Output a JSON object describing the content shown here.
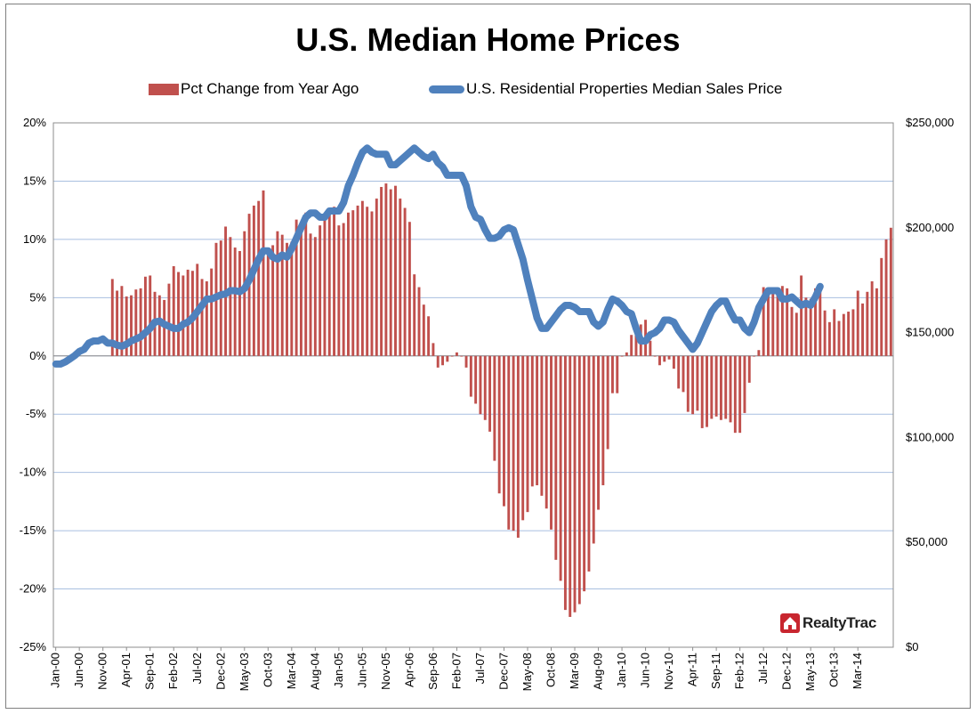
{
  "chart_data": {
    "type": "bar",
    "title": "U.S. Median Home Prices",
    "legend_placement": "top",
    "grid": true,
    "logo_text": "RealtyTrac",
    "colors": {
      "bars": "#c0504d",
      "line": "#4f81bd",
      "grid": "#a9bfe0"
    },
    "x_tick_labels": [
      "Jan-00",
      "Jun-00",
      "Nov-00",
      "Apr-01",
      "Sep-01",
      "Feb-02",
      "Jul-02",
      "Dec-02",
      "May-03",
      "Oct-03",
      "Mar-04",
      "Aug-04",
      "Jan-05",
      "Jun-05",
      "Nov-05",
      "Apr-06",
      "Sep-06",
      "Feb-07",
      "Jul-07",
      "Dec-07",
      "May-08",
      "Oct-08",
      "Mar-09",
      "Aug-09",
      "Jan-10",
      "Jun-10",
      "Nov-10",
      "Apr-11",
      "Sep-11",
      "Feb-12",
      "Jul-12",
      "Dec-12",
      "May-13",
      "Oct-13",
      "Mar-14"
    ],
    "y_left": {
      "ticks": [
        "20%",
        "15%",
        "10%",
        "5%",
        "0%",
        "-5%",
        "-10%",
        "-15%",
        "-20%",
        "-25%"
      ],
      "min": -25,
      "max": 20
    },
    "y_right": {
      "ticks": [
        "$250,000",
        "$200,000",
        "$150,000",
        "$100,000",
        "$50,000",
        "$0"
      ],
      "min": 0,
      "max": 250000
    },
    "series": [
      {
        "name": "Pct Change from Year Ago",
        "type": "bar",
        "start": "Jan-00",
        "values": [
          null,
          null,
          null,
          null,
          null,
          null,
          null,
          null,
          null,
          null,
          null,
          null,
          6.6,
          5.6,
          6,
          5.1,
          5.2,
          5.7,
          5.8,
          6.8,
          6.9,
          5.5,
          5.2,
          4.8,
          6.2,
          7.7,
          7.2,
          6.9,
          7.4,
          7.3,
          7.9,
          6.6,
          6.4,
          7.5,
          9.7,
          9.9,
          11.1,
          10.2,
          9.3,
          9,
          10.7,
          12.2,
          12.9,
          13.3,
          14.2,
          9.2,
          9.5,
          10.7,
          10.4,
          9.7,
          9.8,
          11.7,
          11.5,
          12.3,
          10.5,
          10.2,
          11.2,
          11.7,
          12.5,
          12.8,
          11.2,
          11.4,
          12.3,
          12.5,
          12.9,
          13.3,
          12.8,
          12.4,
          13.5,
          14.5,
          14.8,
          14.3,
          14.6,
          13.5,
          12.7,
          11.5,
          7,
          5.9,
          4.4,
          3.4,
          1.1,
          -1,
          -0.8,
          -0.5,
          0,
          0.3,
          0,
          -1,
          -3.5,
          -4.1,
          -5,
          -5.5,
          -6.5,
          -9,
          -11.8,
          -12.9,
          -14.9,
          -15,
          -15.6,
          -14.1,
          -13.4,
          -11.2,
          -11.1,
          -12,
          -13.1,
          -14.9,
          -17.5,
          -19.3,
          -21.8,
          -22.4,
          -22,
          -21.3,
          -20.2,
          -18.5,
          -16.1,
          -13.2,
          -11.1,
          -8,
          -3.2,
          -3.2,
          0,
          0.3,
          1.8,
          2.3,
          2.7,
          3.1,
          1.3,
          0,
          -0.8,
          -0.5,
          -0.3,
          -1.1,
          -2.8,
          -3.1,
          -4.8,
          -5,
          -4.7,
          -6.2,
          -6.1,
          -5.4,
          -5.2,
          -5.5,
          -5.4,
          -5.7,
          -6.6,
          -6.6,
          -4.9,
          -2.3,
          0,
          0.5,
          5.9,
          5.5,
          5.7,
          5.8,
          6,
          5.8,
          4.2,
          3.7,
          6.9,
          5,
          4.9,
          5.8,
          6.2,
          3.9,
          2.9,
          4,
          3,
          3.6,
          3.8,
          4,
          5.6,
          4.5,
          5.5,
          6.4,
          5.8,
          8.4,
          10,
          11
        ]
      },
      {
        "name": "U.S. Residential Properties Median Sales Price",
        "type": "line",
        "start": "Jan-00",
        "values": [
          135000,
          135000,
          136000,
          137500,
          139000,
          141000,
          142000,
          145000,
          146000,
          146000,
          147000,
          145000,
          145000,
          144000,
          143500,
          144500,
          146000,
          147000,
          148000,
          150000,
          152000,
          155000,
          155500,
          154000,
          153000,
          152000,
          152000,
          154000,
          155000,
          157000,
          160000,
          163000,
          166000,
          166000,
          167000,
          168000,
          168500,
          170000,
          170000,
          169500,
          171000,
          175000,
          180000,
          185000,
          189000,
          189000,
          186000,
          185000,
          187000,
          186000,
          190000,
          195000,
          200000,
          205000,
          207000,
          207000,
          205000,
          205000,
          208000,
          208000,
          208000,
          212000,
          220000,
          225000,
          231000,
          236000,
          238000,
          236000,
          235000,
          235000,
          235000,
          230000,
          230000,
          232000,
          234000,
          236000,
          238000,
          236000,
          234000,
          233000,
          235000,
          231000,
          229000,
          225000,
          225000,
          225000,
          225000,
          220000,
          210000,
          205000,
          204000,
          199000,
          195000,
          195000,
          196000,
          199000,
          200000,
          199000,
          192000,
          185000,
          175000,
          166000,
          157000,
          152000,
          152000,
          155000,
          158000,
          161000,
          163000,
          163000,
          162000,
          160000,
          160000,
          160000,
          155000,
          153000,
          155000,
          161000,
          166000,
          165000,
          163000,
          160000,
          159000,
          152000,
          146000,
          146000,
          149000,
          150000,
          152000,
          156000,
          156000,
          155000,
          151000,
          148000,
          145000,
          142000,
          145000,
          150000,
          155000,
          160000,
          163000,
          165000,
          165000,
          160000,
          156000,
          156000,
          152000,
          150000,
          155000,
          162000,
          166000,
          170000,
          170000,
          170000,
          166000,
          166000,
          167000,
          165000,
          163000,
          164000,
          163000,
          167000,
          172000
        ]
      }
    ]
  }
}
